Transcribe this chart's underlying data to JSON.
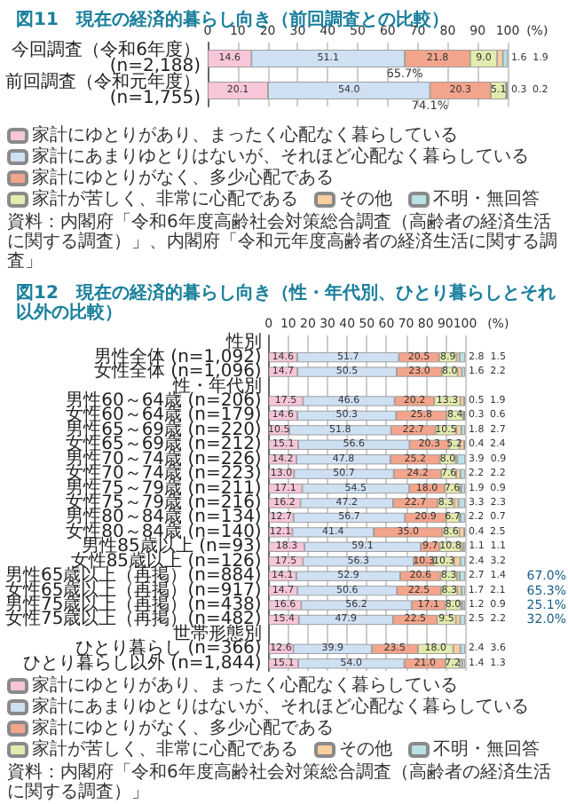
{
  "chart_data": [
    {
      "type": "bar",
      "orientation": "horizontal",
      "stacked": true,
      "title": "図11　現在の経済的暮らし向き（前回調査との比較）",
      "categories": [
        "今回調査（令和6年度）\n(n=2,188)",
        "前回調査（令和元年度）\n(n=1,755)"
      ],
      "series": [
        {
          "name": "家計にゆとりがあり、まったく心配なく暮らしている",
          "color": "#f7c6d9",
          "values": [
            14.6,
            20.1
          ],
          "value_labels": [
            "14.6",
            "20.1"
          ]
        },
        {
          "name": "家計にあまりゆとりはないが、それほど心配なく暮らしている",
          "color": "#cfe0f3",
          "values": [
            51.1,
            54.0
          ],
          "value_labels": [
            "51.1",
            "54.0"
          ]
        },
        {
          "name": "家計にゆとりがなく、多少心配である",
          "color": "#f3a58c",
          "values": [
            21.8,
            20.3
          ],
          "value_labels": [
            "21.8",
            "20.3"
          ]
        },
        {
          "name": "家計が苦しく、非常に心配である",
          "color": "#e3ebae",
          "values": [
            9.0,
            5.1
          ],
          "value_labels": [
            "9.0",
            "5.1"
          ]
        },
        {
          "name": "その他",
          "color": "#f9cf9f",
          "values": [
            1.9,
            0.2
          ],
          "value_labels": [
            "1.9",
            "0.2"
          ]
        },
        {
          "name": "不明・無回答",
          "color": "#b9e2e6",
          "values": [
            1.6,
            0.3
          ],
          "value_labels": [
            "1.6",
            "0.3"
          ]
        }
      ],
      "xlim": [
        0,
        100
      ],
      "xticks": [
        0,
        10,
        20,
        30,
        40,
        50,
        60,
        70,
        80,
        90,
        100
      ],
      "xlabel": "(%)",
      "grid": "x",
      "legend": "bottom",
      "annotations": [
        {
          "text": "65.7%",
          "x": 65.7,
          "y": "今回調査（令和6年度）\n(n=2,188)"
        },
        {
          "text": "74.1%",
          "x": 74.1,
          "y": "前回調査（令和元年度）\n(n=1,755)"
        },
        "資料：内閣府「令和6年度高齢社会対策総合調査（高齢者の経済生活に関する調査）」、内閣府「令和元年度高齢者の経済生活に関する調査」"
      ]
    },
    {
      "type": "bar",
      "orientation": "horizontal",
      "stacked": true,
      "title": "図12　現在の経済的暮らし向き（性・年代別、ひとり暮らしとそれ以外の比較）",
      "categories": [
        "性別",
        "男性全体 (n=1,092)",
        "女性全体 (n=1,096)",
        "性・年代別",
        "男性60～64歳 (n=206)",
        "女性60～64歳 (n=179)",
        "男性65～69歳 (n=220)",
        "女性65～69歳 (n=212)",
        "男性70～74歳 (n=226)",
        "女性70～74歳 (n=223)",
        "男性75～79歳 (n=211)",
        "女性75～79歳 (n=216)",
        "男性80～84歳 (n=134)",
        "女性80～84歳 (n=140)",
        "男性85歳以上 (n=93)",
        "女性85歳以上 (n=126)",
        "男性65歳以上（再掲）(n=884)",
        "女性65歳以上（再掲）(n=917)",
        "男性75歳以上（再掲）(n=438)",
        "女性75歳以上（再掲）(n=482)",
        "世帯形態別",
        "ひとり暮らし (n=366)",
        "ひとり暮らし以外 (n=1,844)"
      ],
      "series": [
        {
          "name": "家計にゆとりがあり、まったく心配なく暮らしている",
          "color": "#f7c6d9",
          "values": [
            null,
            14.6,
            14.7,
            null,
            17.5,
            14.6,
            10.5,
            15.1,
            14.2,
            13.0,
            17.1,
            16.2,
            12.7,
            12.1,
            18.3,
            17.5,
            14.1,
            14.7,
            16.6,
            15.4,
            null,
            12.6,
            15.1
          ],
          "value_labels": [
            null,
            "14.6",
            "14.7",
            null,
            "17.5",
            "14.6",
            "10.5",
            "15.1",
            "14.2",
            "13.0",
            "17.1",
            "16.2",
            "12.7",
            "12.1",
            "18.3",
            "17.5",
            "14.1",
            "14.7",
            "16.6",
            "15.4",
            null,
            "12.6",
            "15.1"
          ]
        },
        {
          "name": "家計にあまりゆとりはないが、それほど心配なく暮らしている",
          "color": "#cfe0f3",
          "values": [
            null,
            51.7,
            50.5,
            null,
            46.6,
            50.3,
            51.8,
            56.6,
            47.8,
            50.7,
            54.5,
            47.2,
            56.7,
            41.4,
            59.1,
            56.3,
            52.9,
            50.6,
            56.2,
            47.9,
            null,
            39.9,
            54.0
          ],
          "value_labels": [
            null,
            "51.7",
            "50.5",
            null,
            "46.6",
            "50.3",
            "51.8",
            "56.6",
            "47.8",
            "50.7",
            "54.5",
            "47.2",
            "56.7",
            "41.4",
            "59.1",
            "56.3",
            "52.9",
            "50.6",
            "56.2",
            "47.9",
            null,
            "39.9",
            "54.0"
          ]
        },
        {
          "name": "家計にゆとりがなく、多少心配である",
          "color": "#f3a58c",
          "values": [
            null,
            20.5,
            23.0,
            null,
            20.2,
            25.8,
            22.7,
            20.3,
            25.2,
            24.2,
            18.0,
            22.7,
            20.9,
            35.0,
            9.7,
            10.3,
            20.6,
            22.5,
            17.1,
            22.5,
            null,
            23.5,
            21.0
          ],
          "value_labels": [
            null,
            "20.5",
            "23.0",
            null,
            "20.2",
            "25.8",
            "22.7",
            "20.3",
            "25.2",
            "24.2",
            "18.0",
            "22.7",
            "20.9",
            "35.0",
            "9.7",
            "10.3",
            "20.6",
            "22.5",
            "17.1",
            "22.5",
            null,
            "23.5",
            "21.0"
          ]
        },
        {
          "name": "家計が苦しく、非常に心配である",
          "color": "#e3ebae",
          "values": [
            null,
            8.9,
            8.0,
            null,
            13.3,
            8.4,
            10.5,
            5.2,
            8.0,
            7.6,
            7.6,
            8.3,
            6.7,
            8.6,
            10.8,
            10.3,
            8.3,
            8.3,
            8.0,
            9.5,
            null,
            18.0,
            7.2
          ],
          "value_labels": [
            null,
            "8.9",
            "8.0",
            null,
            "13.3",
            "8.4",
            "10.5",
            "5.2",
            "8.0",
            "7.6",
            "7.6",
            "8.3",
            "6.7",
            "8.6",
            "10.8",
            "10.3",
            "8.3",
            "8.3",
            "8.0",
            "9.5",
            null,
            "18.0",
            "7.2"
          ]
        },
        {
          "name": "その他",
          "color": "#f9cf9f",
          "values": [
            null,
            1.5,
            2.2,
            null,
            1.9,
            0.6,
            2.7,
            2.4,
            0.9,
            2.2,
            0.9,
            2.3,
            0.7,
            2.5,
            1.1,
            3.2,
            1.4,
            2.1,
            0.9,
            2.2,
            null,
            3.6,
            1.3
          ],
          "value_labels": [
            null,
            "1.5",
            "2.2",
            null,
            "1.9",
            "0.6",
            "2.7",
            "2.4",
            "0.9",
            "2.2",
            "0.9",
            "2.3",
            "0.7",
            "2.5",
            "1.1",
            "3.2",
            "1.4",
            "2.1",
            "0.9",
            "2.2",
            null,
            "3.6",
            "1.3"
          ]
        },
        {
          "name": "不明・無回答",
          "color": "#b9e2e6",
          "values": [
            null,
            2.8,
            1.6,
            null,
            0.5,
            0.3,
            1.8,
            0.4,
            3.9,
            2.2,
            1.9,
            3.3,
            2.2,
            0.4,
            1.1,
            2.4,
            2.7,
            1.7,
            1.2,
            2.5,
            null,
            2.4,
            1.4
          ],
          "value_labels": [
            null,
            "2.8",
            "1.6",
            null,
            "0.5",
            "0.3",
            "1.8",
            "0.4",
            "3.9",
            "2.2",
            "1.9",
            "3.3",
            "2.2",
            "0.4",
            "1.1",
            "2.4",
            "2.7",
            "1.7",
            "1.2",
            "2.5",
            null,
            "2.4",
            "1.4"
          ]
        }
      ],
      "xlim": [
        0,
        100
      ],
      "xticks": [
        0,
        10,
        20,
        30,
        40,
        50,
        60,
        70,
        80,
        90,
        100
      ],
      "xlabel": "(%)",
      "grid": "x",
      "legend": "bottom",
      "annotations": [
        "67.0%",
        "65.3%",
        "25.1%",
        "32.0%",
        "資料：内閣府「令和6年度高齢社会対策総合調査（高齢者の経済生活に関する調査）」"
      ]
    }
  ]
}
